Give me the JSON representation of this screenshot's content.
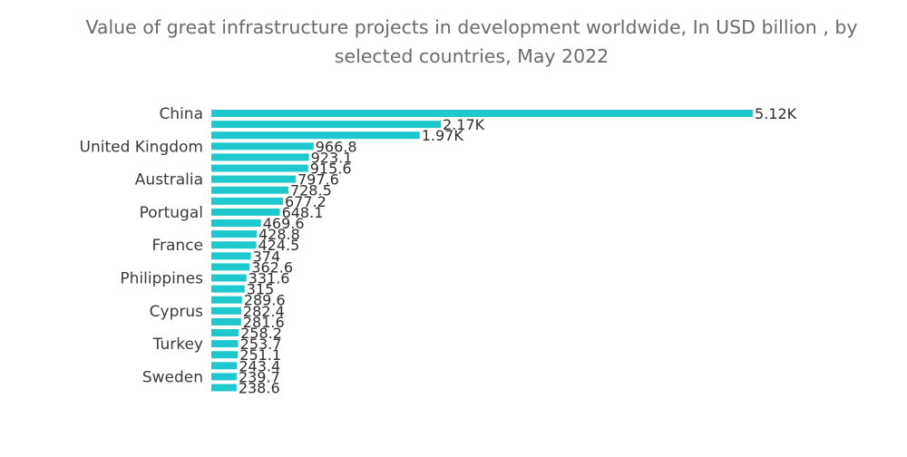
{
  "chart_data": {
    "type": "bar",
    "orientation": "horizontal",
    "title": "Value of great infrastructure projects in development worldwide, In USD billion , by selected countries, May 2022",
    "categories": [
      "China",
      "",
      "",
      "United Kingdom",
      "",
      "",
      "Australia",
      "",
      "",
      "Portugal",
      "",
      "",
      "France",
      "",
      "",
      "Philippines",
      "",
      "",
      "Cyprus",
      "",
      "",
      "Turkey",
      "",
      "",
      "Sweden",
      ""
    ],
    "values": [
      5120,
      2170,
      1970,
      966.8,
      923.1,
      915.6,
      797.6,
      728.5,
      677.2,
      648.1,
      469.6,
      428.8,
      424.5,
      374,
      362.6,
      331.6,
      315,
      289.6,
      282.4,
      281.6,
      258.2,
      253.7,
      251.1,
      243.4,
      239.7,
      238.6
    ],
    "value_labels": [
      "5.12K",
      "2.17K",
      "1.97K",
      "966.8",
      "923.1",
      "915.6",
      "797.6",
      "728.5",
      "677.2",
      "648.1",
      "469.6",
      "428.8",
      "424.5",
      "374",
      "362.6",
      "331.6",
      "315",
      "289.6",
      "282.4",
      "281.6",
      "258.2",
      "253.7",
      "251.1",
      "243.4",
      "239.7",
      "238.6"
    ],
    "xlim": [
      0,
      5120
    ],
    "grid": false,
    "legend": "none",
    "colors": {
      "bar": "#1fc8cc",
      "title": "#6b6b6b",
      "label": "#3a3a3a"
    }
  }
}
